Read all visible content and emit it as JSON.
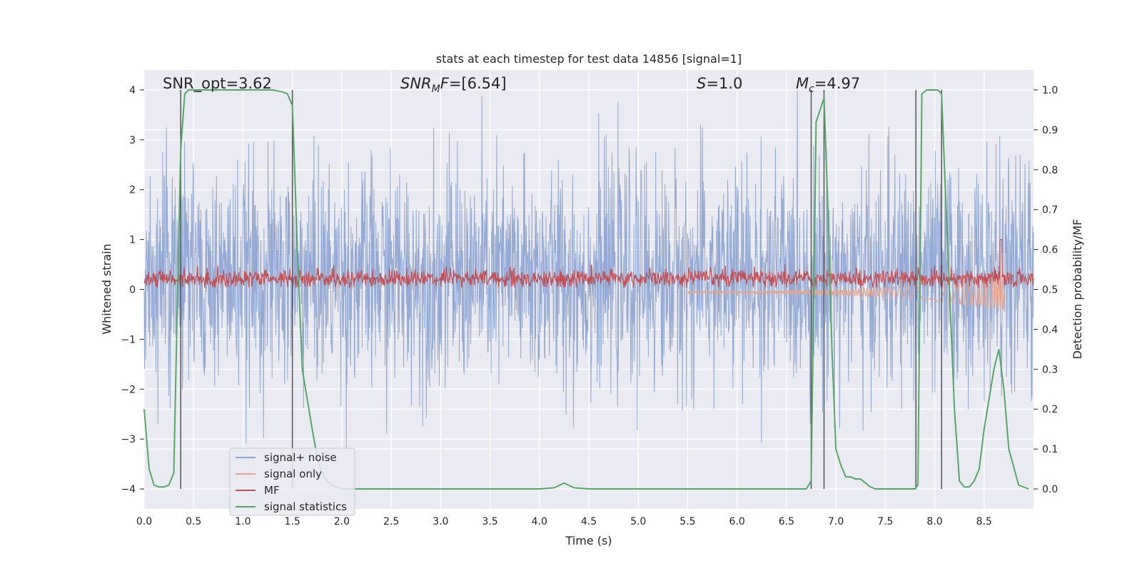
{
  "chart_data": {
    "type": "line",
    "title": "stats at each timestep for test data 14856 [signal=1]",
    "xlabel": "Time (s)",
    "ylabel": "Whitened strain",
    "y2label": "Detection probability/MF",
    "xlim": [
      0,
      9.0
    ],
    "ylim": [
      -4.4,
      4.4
    ],
    "y2lim": [
      -0.05,
      1.05
    ],
    "xticks": [
      "0.0",
      "0.5",
      "1.0",
      "1.5",
      "2.0",
      "2.5",
      "3.0",
      "3.5",
      "4.0",
      "4.5",
      "5.0",
      "5.5",
      "6.0",
      "6.5",
      "7.0",
      "7.5",
      "8.0",
      "8.5"
    ],
    "yticks": [
      "4",
      "3",
      "2",
      "1",
      "0",
      "−1",
      "−2",
      "−3",
      "−4"
    ],
    "y2ticks": [
      "1.0",
      "0.9",
      "0.8",
      "0.7",
      "0.6",
      "0.5",
      "0.4",
      "0.3",
      "0.2",
      "0.1",
      "0.0"
    ],
    "grid": true,
    "legend_position": "lower-left",
    "annotations": [
      {
        "text": "SNR_opt=3.62",
        "x": 0.18
      },
      {
        "text_main": "SNR",
        "text_sub": "M",
        "text_rest": "F=[6.54]",
        "x": 2.6
      },
      {
        "text_main": "S",
        "text_rest": "=1.0",
        "x": 5.6
      },
      {
        "text_main": "M",
        "text_sub": "c",
        "text_rest": "=4.97",
        "x": 6.6
      }
    ],
    "vertical_lines": [
      0.37,
      1.5,
      6.75,
      6.88,
      7.81,
      8.07
    ],
    "series": [
      {
        "name": "signal+ noise",
        "color": "#8fa6d2",
        "axis": "left",
        "kind": "noise",
        "x_range": [
          0.0,
          9.0
        ],
        "amplitude_envelope_abs": 4.0,
        "typical_range": [
          -1.7,
          2.2
        ]
      },
      {
        "name": "signal only",
        "color": "#e9a58c",
        "axis": "left",
        "kind": "chirp",
        "x_range": [
          5.5,
          8.7
        ],
        "values_at_end": [
          -0.05,
          -0.4
        ]
      },
      {
        "name": "MF",
        "color": "#c44e52",
        "axis": "left",
        "kind": "noise",
        "x_range": [
          0.0,
          9.0
        ],
        "typical_range": [
          0.05,
          0.45
        ],
        "peak": {
          "x": 8.67,
          "y": 1.0
        }
      },
      {
        "name": "signal statistics",
        "color": "#55a868",
        "axis": "right",
        "x": [
          0.0,
          0.05,
          0.1,
          0.15,
          0.2,
          0.25,
          0.3,
          0.33,
          0.37,
          0.41,
          0.45,
          0.5,
          0.6,
          0.7,
          0.8,
          0.9,
          1.0,
          1.1,
          1.2,
          1.3,
          1.4,
          1.45,
          1.5,
          1.55,
          1.6,
          1.7,
          1.75,
          1.8,
          1.85,
          1.9,
          2.0,
          2.5,
          3.0,
          3.5,
          4.0,
          4.15,
          4.25,
          4.35,
          4.5,
          5.0,
          5.5,
          6.0,
          6.5,
          6.7,
          6.75,
          6.8,
          6.84,
          6.88,
          6.92,
          6.96,
          7.0,
          7.05,
          7.1,
          7.15,
          7.2,
          7.25,
          7.3,
          7.35,
          7.4,
          7.5,
          7.6,
          7.7,
          7.8,
          7.83,
          7.87,
          7.92,
          7.96,
          8.0,
          8.03,
          8.07,
          8.1,
          8.15,
          8.2,
          8.25,
          8.3,
          8.35,
          8.4,
          8.45,
          8.5,
          8.6,
          8.65,
          8.7,
          8.75,
          8.85,
          8.95
        ],
        "values": [
          0.2,
          0.05,
          0.01,
          0.005,
          0.005,
          0.01,
          0.04,
          0.4,
          0.85,
          0.99,
          1.0,
          1.0,
          1.0,
          1.0,
          1.0,
          1.0,
          1.0,
          1.0,
          1.0,
          1.0,
          0.995,
          0.99,
          0.96,
          0.6,
          0.3,
          0.15,
          0.08,
          0.04,
          0.02,
          0.01,
          0.0,
          0.0,
          0.0,
          0.0,
          0.0,
          0.003,
          0.015,
          0.003,
          0.0,
          0.0,
          0.0,
          0.0,
          0.0,
          0.0,
          0.02,
          0.92,
          0.95,
          0.98,
          0.7,
          0.35,
          0.1,
          0.06,
          0.03,
          0.03,
          0.025,
          0.025,
          0.015,
          0.005,
          0.0,
          0.0,
          0.0,
          0.0,
          0.0,
          0.01,
          0.99,
          1.0,
          1.0,
          1.0,
          1.0,
          0.99,
          0.8,
          0.5,
          0.2,
          0.02,
          0.005,
          0.005,
          0.02,
          0.05,
          0.15,
          0.3,
          0.35,
          0.25,
          0.1,
          0.01,
          0.0
        ]
      }
    ]
  }
}
